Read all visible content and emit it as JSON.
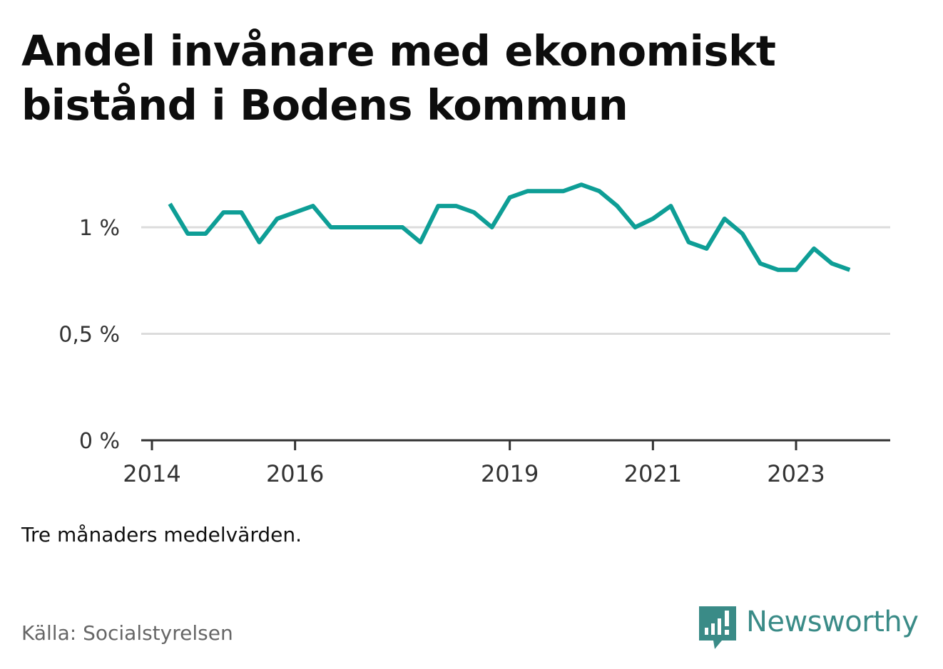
{
  "title": "Andel invånare med ekonomiskt bistånd i Bodens kommun",
  "note": "Tre månaders medelvärden.",
  "source": "Källa: Socialstyrelsen",
  "brand": {
    "name": "Newsworthy",
    "icon": "newsworthy-logo-icon",
    "color": "#3a8b87"
  },
  "colors": {
    "line": "#0e9e96",
    "grid": "#dcdcdc",
    "axis": "#333333"
  },
  "chart_data": {
    "type": "line",
    "title": "Andel invånare med ekonomiskt bistånd i Bodens kommun",
    "xlabel": "",
    "ylabel": "",
    "x_tick_labels": [
      "2014",
      "2016",
      "2019",
      "2021",
      "2023"
    ],
    "y_tick_labels": [
      "0 %",
      "0,5 %",
      "1 %"
    ],
    "y_ticks": [
      0,
      0.5,
      1.0
    ],
    "ylim": [
      0,
      1.25
    ],
    "xlim": [
      "2013-12",
      "2024-04"
    ],
    "grid": "horizontal",
    "legend": "none",
    "series": [
      {
        "x": [
          "2014-04",
          "2014-07",
          "2014-10",
          "2015-01",
          "2015-04",
          "2015-07",
          "2015-10",
          "2016-01",
          "2016-04",
          "2016-07",
          "2016-10",
          "2017-01",
          "2017-04",
          "2017-07",
          "2017-10",
          "2018-01",
          "2018-04",
          "2018-07",
          "2018-10",
          "2019-01",
          "2019-04",
          "2019-07",
          "2019-10",
          "2020-01",
          "2020-04",
          "2020-07",
          "2020-10",
          "2021-01",
          "2021-04",
          "2021-07",
          "2021-10",
          "2022-01",
          "2022-04",
          "2022-07",
          "2022-10",
          "2023-01",
          "2023-04",
          "2023-07",
          "2023-10"
        ],
        "values": [
          1.11,
          0.97,
          0.97,
          1.07,
          1.07,
          0.93,
          1.04,
          1.07,
          1.1,
          1.0,
          1.0,
          1.0,
          1.0,
          1.0,
          0.93,
          1.1,
          1.1,
          1.07,
          1.0,
          1.14,
          1.17,
          1.17,
          1.17,
          1.2,
          1.17,
          1.1,
          1.0,
          1.04,
          1.1,
          0.93,
          0.9,
          1.04,
          0.97,
          0.83,
          0.8,
          0.8,
          0.9,
          0.83,
          0.8
        ]
      }
    ]
  }
}
